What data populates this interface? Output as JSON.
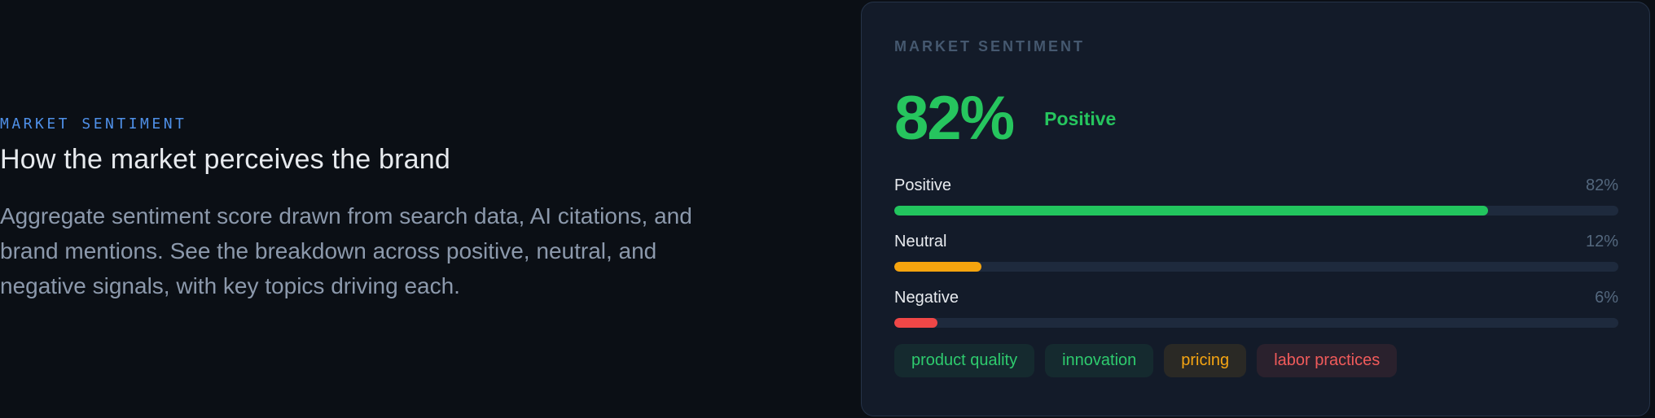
{
  "left_panel": {
    "eyebrow": "MARKET SENTIMENT",
    "heading": "How the market perceives the brand",
    "description_lines": [
      "Aggregate sentiment score drawn from search data, AI citations, and",
      "brand mentions. See the breakdown across positive, neutral, and",
      "negative signals, with key topics driving each."
    ]
  },
  "card": {
    "title": "MARKET SENTIMENT",
    "score": {
      "value": "82%",
      "label": "Positive",
      "color": "#26c55e"
    },
    "bars": [
      {
        "label": "Positive",
        "value": "82%",
        "percent": 82,
        "color": "#22c55e"
      },
      {
        "label": "Neutral",
        "value": "12%",
        "percent": 12,
        "color": "#f6a40e"
      },
      {
        "label": "Negative",
        "value": "6%",
        "percent": 6,
        "color": "#ef4747"
      }
    ],
    "tags": [
      {
        "label": "product quality",
        "sentiment": "positive",
        "color": "#2ecb6e"
      },
      {
        "label": "innovation",
        "sentiment": "positive",
        "color": "#2ecb6e"
      },
      {
        "label": "pricing",
        "sentiment": "neutral",
        "color": "#f6a512"
      },
      {
        "label": "labor practices",
        "sentiment": "negative",
        "color": "#f15b5b"
      }
    ]
  },
  "colors": {
    "page_background": "#0b0f15",
    "card_background": "#131b29",
    "card_border": "#253348",
    "bar_track": "#1e2a3d",
    "accent_blue": "#4f90e8",
    "positive_green": "#22c55e",
    "neutral_amber": "#f6a40e",
    "negative_red": "#ef4747"
  },
  "chart_data": {
    "type": "bar",
    "title": "MARKET SENTIMENT",
    "overall_score": {
      "value": 82,
      "unit": "%",
      "label": "Positive"
    },
    "categories": [
      "Positive",
      "Neutral",
      "Negative"
    ],
    "values": [
      82,
      12,
      6
    ],
    "value_labels": [
      "82%",
      "12%",
      "6%"
    ],
    "xlim": [
      0,
      100
    ],
    "orientation": "horizontal",
    "bar_colors": [
      "#22c55e",
      "#f6a40e",
      "#ef4747"
    ],
    "annotations": [
      "product quality",
      "innovation",
      "pricing",
      "labor practices"
    ]
  }
}
